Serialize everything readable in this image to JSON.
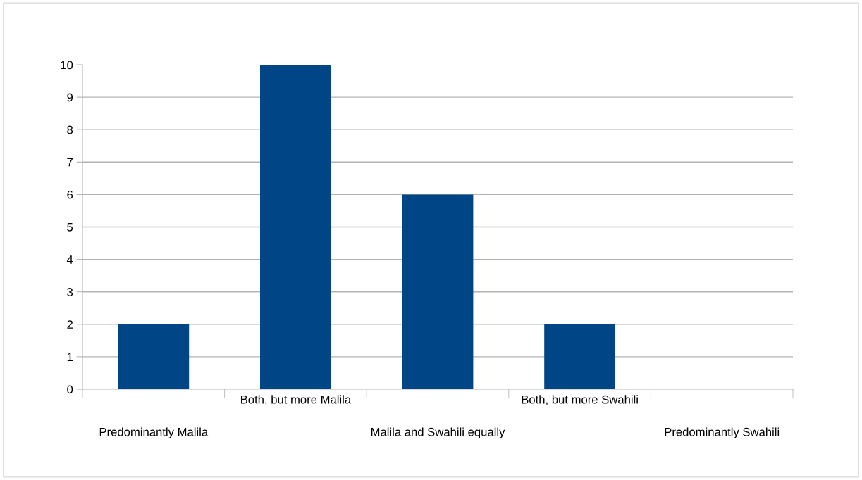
{
  "chart_data": {
    "type": "bar",
    "categories": [
      "Predominantly Malila",
      "Both, but more Malila",
      "Malila and Swahili equally",
      "Both, but more Swahili",
      "Predominantly Swahili"
    ],
    "values": [
      2,
      10,
      6,
      2,
      0
    ],
    "color": "#004586",
    "ylim": [
      0,
      10
    ],
    "yticks": [
      0,
      1,
      2,
      3,
      4,
      5,
      6,
      7,
      8,
      9,
      10
    ],
    "grid": "y",
    "legend": false
  }
}
